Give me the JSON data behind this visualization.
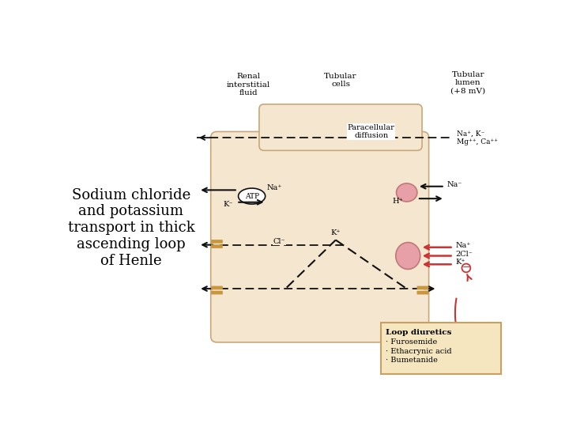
{
  "background_color": "#ffffff",
  "title_text": "Sodium chloride\nand potassium\ntransport in thick\nascending loop\nof Henle",
  "cell_fill": "#f5e6d0",
  "top_bulge_fill": "#f5e6d0",
  "cell_edge": "#c8a87a",
  "header_renal": "Renal\ninterstitial\nfluid",
  "header_tubular": "Tubular\ncells",
  "header_lumen": "Tubular\nlumen\n(+8 mV)",
  "label_paracellular": "Paracellular\ndiffusion",
  "label_ions_top": "Na⁺, K⁻\nMg⁺⁺, Ca⁺⁺",
  "label_Na_pump": "Na⁺",
  "label_K_pump": "K⁻",
  "label_Na_right": "Na⁻",
  "label_H_right": "H⁺",
  "label_Cl": "Cl⁻",
  "label_K_center": "K⁺",
  "label_Na_cotrans": "Na⁺",
  "label_2Cl_cotrans": "2Cl⁻",
  "label_K_cotrans": "K⁺",
  "loop_diuretics_title": "Loop diuretics",
  "loop_diuretics_items": [
    "· Furosemide",
    "· Ethacrynic acid",
    "· Bumetanide"
  ],
  "atp_label": "ATP",
  "pink_color": "#e8a0a8",
  "red_arrow_color": "#cc3333",
  "black_arrow_color": "#111111",
  "tan_color": "#c8963c",
  "box_fill": "#f5e6c0",
  "box_border": "#c8a060"
}
